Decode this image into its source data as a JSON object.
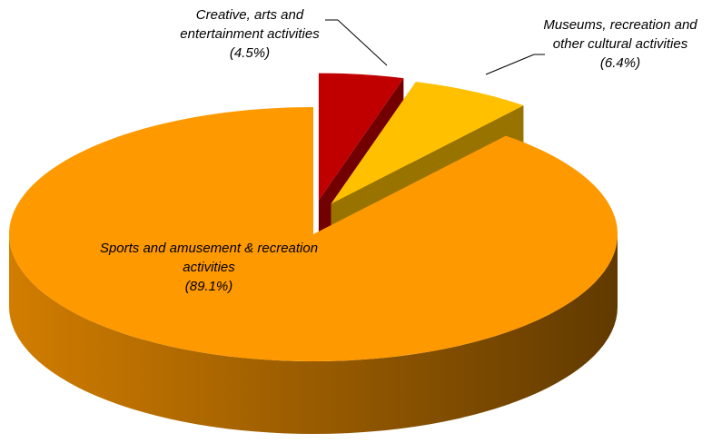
{
  "chart_data": {
    "type": "pie",
    "categories": [
      "Creative, arts and entertainment activities",
      "Museums, recreation and other cultural activities",
      "Sports and amusement & recreation activities"
    ],
    "values": [
      4.5,
      6.4,
      89.1
    ],
    "value_labels": [
      "(4.5%)",
      "(6.4%)",
      "(89.1%)"
    ],
    "colors": [
      "#c00000",
      "#ffc000",
      "#ff9900"
    ],
    "legend": false
  }
}
